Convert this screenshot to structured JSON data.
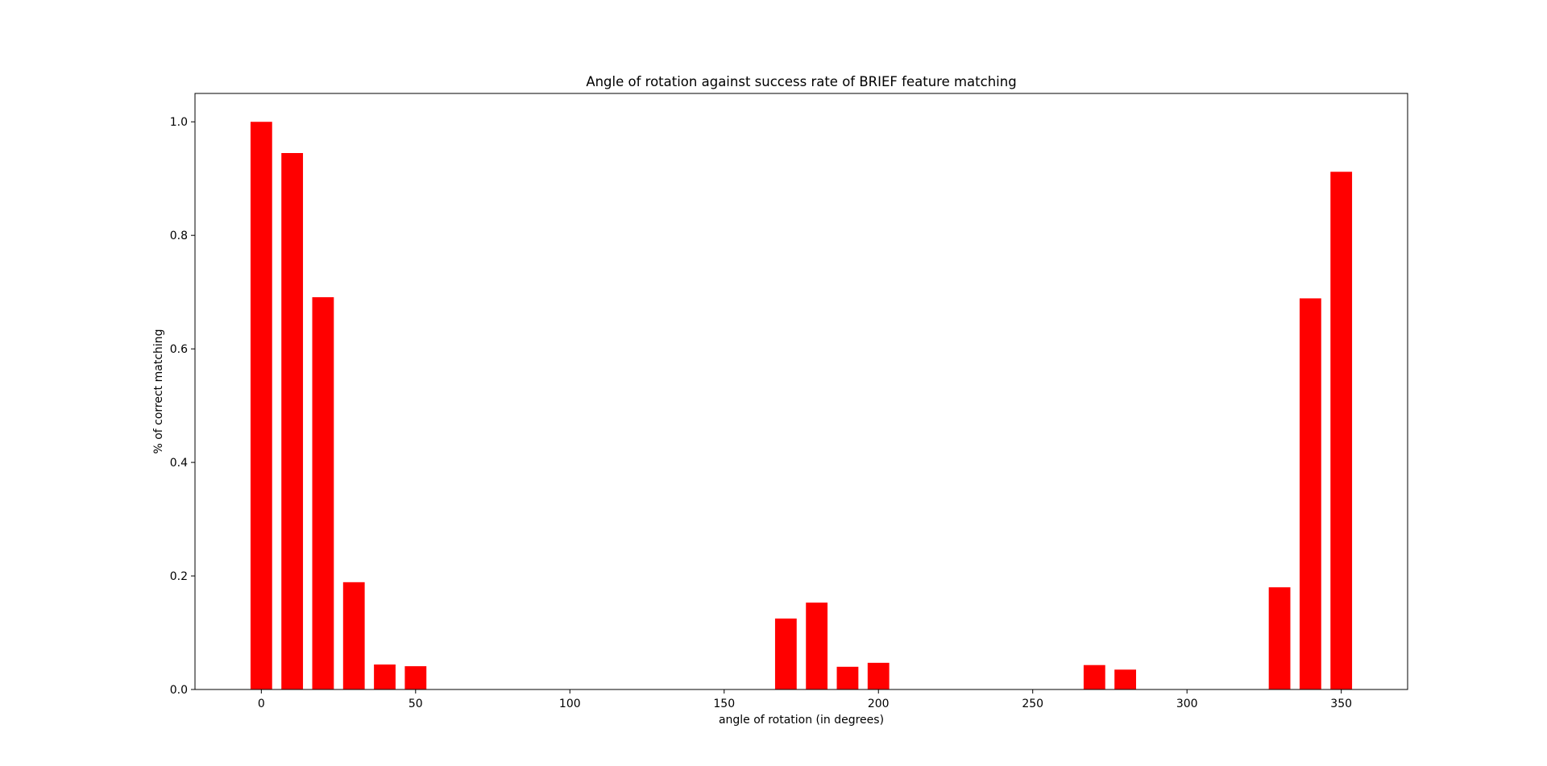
{
  "chart_data": {
    "type": "bar",
    "title": "Angle of rotation against success rate of BRIEF feature matching",
    "xlabel": "angle of rotation (in degrees)",
    "ylabel": "% of correct matching",
    "x": [
      0,
      10,
      20,
      30,
      40,
      50,
      60,
      70,
      80,
      90,
      100,
      110,
      120,
      130,
      140,
      150,
      160,
      170,
      180,
      190,
      200,
      210,
      220,
      230,
      240,
      250,
      260,
      270,
      280,
      290,
      300,
      310,
      320,
      330,
      340,
      350
    ],
    "values": [
      1.0,
      0.945,
      0.691,
      0.189,
      0.044,
      0.041,
      0,
      0,
      0,
      0,
      0,
      0,
      0,
      0,
      0,
      0,
      0,
      0.125,
      0.153,
      0.04,
      0.047,
      0,
      0,
      0,
      0,
      0,
      0,
      0.043,
      0.035,
      0,
      0,
      0,
      0,
      0.18,
      0.689,
      0.912
    ],
    "bar_width": 7,
    "xlim": [
      -21.5,
      371.5
    ],
    "ylim": [
      0,
      1.05
    ],
    "xticks": [
      0,
      50,
      100,
      150,
      200,
      250,
      300,
      350
    ],
    "yticks": [
      0.0,
      0.2,
      0.4,
      0.6,
      0.8,
      1.0
    ],
    "xtick_labels": [
      "0",
      "50",
      "100",
      "150",
      "200",
      "250",
      "300",
      "350"
    ],
    "ytick_labels": [
      "0.0",
      "0.2",
      "0.4",
      "0.6",
      "0.8",
      "1.0"
    ],
    "bar_color": "#ff0000",
    "grid": false,
    "legend": false
  }
}
